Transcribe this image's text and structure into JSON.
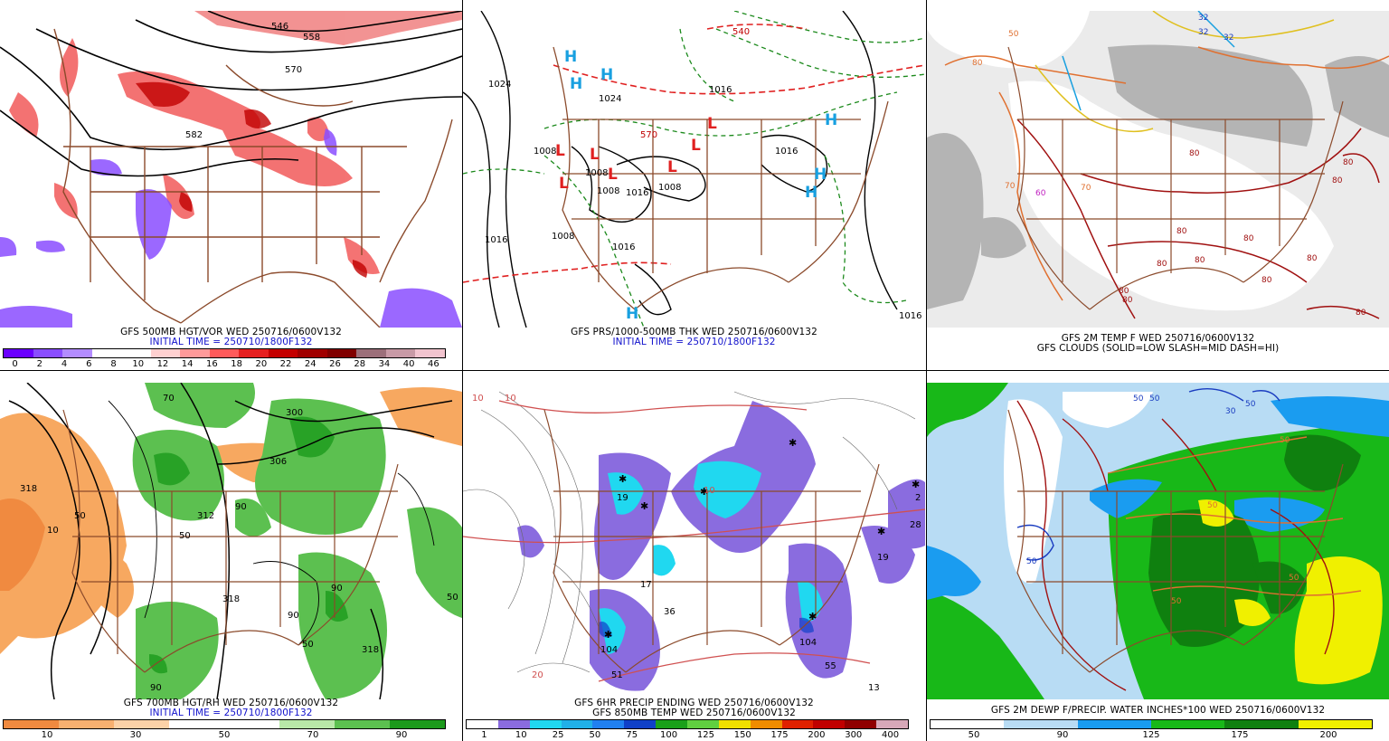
{
  "panels": [
    {
      "id": "p1",
      "title": "GFS 500MB HGT/VOR WED 250716/0600V132",
      "subtitle": "INITIAL TIME = 250710/1800F132",
      "colorbar": {
        "colors": [
          "#6a00ff",
          "#8a4dff",
          "#b38cff",
          "#ffffff",
          "#ffffff",
          "#ffd0d0",
          "#ff9a9a",
          "#ff5a5a",
          "#e62020",
          "#c40000",
          "#a00000",
          "#800000",
          "#9c6f7a",
          "#c89aa6",
          "#f2c4cf"
        ],
        "labels": [
          "0",
          "2",
          "4",
          "6",
          "8",
          "10",
          "12",
          "14",
          "16",
          "18",
          "20",
          "22",
          "24",
          "26",
          "28",
          "34",
          "40",
          "46"
        ]
      },
      "contour_labels": [
        "546",
        "558",
        "570",
        "582"
      ]
    },
    {
      "id": "p2",
      "title": "GFS PRS/1000-500MB THK WED 250716/0600V132",
      "subtitle": "INITIAL TIME = 250710/1800F132",
      "contour_labels": [
        "1024",
        "1024",
        "1016",
        "1016",
        "1016",
        "1008",
        "1008",
        "1008",
        "1008",
        "1008",
        "1016",
        "1016",
        "540",
        "570",
        "1016"
      ],
      "symbols": [
        "H",
        "H",
        "H",
        "H",
        "H",
        "H",
        "H",
        "L",
        "L",
        "L",
        "L",
        "L",
        "L",
        "L"
      ]
    },
    {
      "id": "p3",
      "title": "GFS 2M TEMP F WED 250716/0600V132",
      "subtitle": "GFS CLOUDS (SOLID=LOW SLASH=MID DASH=HI)",
      "contour_labels": [
        "32",
        "32",
        "32",
        "50",
        "80",
        "70",
        "80",
        "60",
        "80",
        "80",
        "80",
        "80",
        "80",
        "80",
        "70",
        "80",
        "80",
        "80",
        "80",
        "80"
      ]
    },
    {
      "id": "p4",
      "title": "GFS 700MB HGT/RH WED 250716/0600V132",
      "subtitle": "INITIAL TIME = 250710/1800F132",
      "colorbar": {
        "colors": [
          "#f08a40",
          "#f7b070",
          "#fbd2a8",
          "#ffffff",
          "#ffffff",
          "#b8e8a8",
          "#5cc050",
          "#1c9a1c"
        ],
        "labels": [
          "10",
          "30",
          "50",
          "70",
          "90"
        ]
      },
      "contour_labels": [
        "318",
        "312",
        "306",
        "300",
        "318",
        "50",
        "50",
        "90",
        "70",
        "10",
        "50",
        "50",
        "90",
        "90",
        "90",
        "318"
      ]
    },
    {
      "id": "p5",
      "title": "GFS 6HR PRECIP ENDING WED 250716/0600V132",
      "subtitle": "GFS 850MB TEMP WED 250716/0600V132",
      "colorbar": {
        "colors": [
          "#ffffff",
          "#8a6cdf",
          "#20d8f0",
          "#20b0e8",
          "#2080f0",
          "#1040c8",
          "#1aa01a",
          "#60d040",
          "#f0e000",
          "#f08c00",
          "#e02000",
          "#c00000",
          "#900000",
          "#d8a8b8"
        ],
        "labels": [
          "1",
          "10",
          "25",
          "50",
          "75",
          "100",
          "125",
          "150",
          "175",
          "200",
          "300",
          "400"
        ]
      },
      "contour_labels": [
        "10",
        "10",
        "10",
        "20",
        "19",
        "28",
        "2",
        "19",
        "17",
        "36",
        "104",
        "51",
        "104",
        "55",
        "13"
      ]
    },
    {
      "id": "p6",
      "title": "GFS 2M DEWP F/PRECIP. WATER INCHES*100 WED 250716/0600V132",
      "colorbar": {
        "colors": [
          "#ffffff",
          "#ffffff",
          "#b8dcf4",
          "#b8dcf4",
          "#1a9cf0",
          "#1a9cf0",
          "#18b818",
          "#18b818",
          "#0f800f",
          "#0f800f",
          "#f0f000",
          "#f0f000"
        ],
        "labels": [
          "50",
          "90",
          "125",
          "175",
          "200"
        ]
      },
      "contour_labels": [
        "50",
        "50",
        "30",
        "50",
        "50",
        "50",
        "50",
        "50",
        "50"
      ]
    }
  ]
}
